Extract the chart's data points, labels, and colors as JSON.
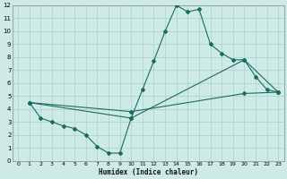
{
  "xlabel": "Humidex (Indice chaleur)",
  "bg_color": "#ceeae6",
  "grid_color": "#aed4cf",
  "line_color": "#1a6b5e",
  "xlim": [
    -0.5,
    23.5
  ],
  "ylim": [
    0,
    12
  ],
  "xticks": [
    0,
    1,
    2,
    3,
    4,
    5,
    6,
    7,
    8,
    9,
    10,
    11,
    12,
    13,
    14,
    15,
    16,
    17,
    18,
    19,
    20,
    21,
    22,
    23
  ],
  "yticks": [
    0,
    1,
    2,
    3,
    4,
    5,
    6,
    7,
    8,
    9,
    10,
    11,
    12
  ],
  "line1_x": [
    1,
    2,
    3,
    4,
    5,
    6,
    7,
    8,
    9,
    10,
    11,
    12,
    13,
    14,
    15,
    16,
    17,
    18,
    19,
    20,
    21,
    22,
    23
  ],
  "line1_y": [
    4.5,
    3.3,
    3.0,
    2.7,
    2.5,
    2.0,
    1.1,
    0.6,
    0.6,
    3.3,
    5.5,
    7.7,
    10.0,
    12.0,
    11.5,
    11.7,
    9.0,
    8.3,
    7.8,
    7.8,
    6.5,
    5.5,
    5.3
  ],
  "line2_x": [
    1,
    10,
    20,
    23
  ],
  "line2_y": [
    4.5,
    3.3,
    7.8,
    5.3
  ],
  "line3_x": [
    1,
    10,
    20,
    23
  ],
  "line3_y": [
    4.5,
    3.8,
    5.2,
    5.3
  ]
}
